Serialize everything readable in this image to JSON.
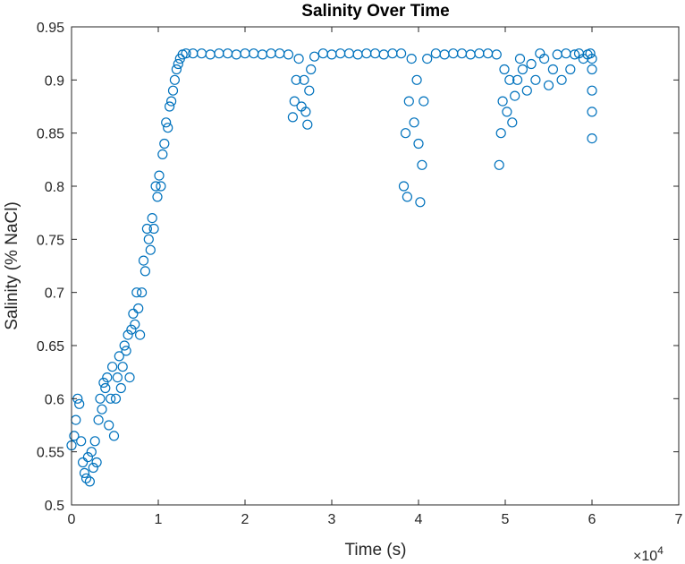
{
  "chart_data": {
    "type": "scatter",
    "title": "Salinity Over Time",
    "xlabel": "Time (s)",
    "ylabel": "Salinity (% NaCl)",
    "xlim": [
      0,
      70000
    ],
    "ylim": [
      0.5,
      0.95
    ],
    "x_ticks": [
      0,
      10000,
      20000,
      30000,
      40000,
      50000,
      60000,
      70000
    ],
    "x_tick_labels": [
      "0",
      "1",
      "2",
      "3",
      "4",
      "5",
      "6",
      "7"
    ],
    "x_exponent_label": "×10",
    "x_exponent_power": "4",
    "y_ticks": [
      0.5,
      0.55,
      0.6,
      0.65,
      0.7,
      0.75,
      0.8,
      0.85,
      0.9,
      0.95
    ],
    "y_tick_labels": [
      "0.5",
      "0.55",
      "0.6",
      "0.65",
      "0.7",
      "0.75",
      "0.8",
      "0.85",
      "0.9",
      "0.95"
    ],
    "grid": false,
    "marker": "circle-open",
    "marker_color": "#0072BD",
    "series": [
      {
        "x": [
          0,
          300,
          500,
          700,
          900,
          1100,
          1300,
          1500,
          1700,
          1900,
          2100,
          2300,
          2500,
          2700,
          2900,
          3100,
          3300,
          3500,
          3700,
          3900,
          4100,
          4300,
          4500,
          4700,
          4900,
          5100,
          5300,
          5500,
          5700,
          5900,
          6100,
          6300,
          6500,
          6700,
          6900,
          7100,
          7300,
          7500,
          7700,
          7900,
          8100,
          8300,
          8500,
          8700,
          8900,
          9100,
          9300,
          9500,
          9700,
          9900,
          10100,
          10300,
          10500,
          10700,
          10900,
          11100,
          11300,
          11500,
          11700,
          11900,
          12100,
          12300,
          12500,
          12800,
          13200,
          14000,
          15000,
          16000,
          17000,
          18000,
          19000,
          20000,
          21000,
          22000,
          23000,
          24000,
          25000,
          25500,
          25700,
          25900,
          26200,
          26500,
          26800,
          27000,
          27200,
          27400,
          27600,
          28000,
          29000,
          30000,
          31000,
          32000,
          33000,
          34000,
          35000,
          36000,
          37000,
          38000,
          38300,
          38500,
          38700,
          38900,
          39200,
          39500,
          39800,
          40000,
          40200,
          40400,
          40600,
          41000,
          42000,
          43000,
          44000,
          45000,
          46000,
          47000,
          48000,
          49000,
          49300,
          49500,
          49700,
          49900,
          50200,
          50500,
          50800,
          51100,
          51400,
          51700,
          52000,
          52500,
          53000,
          53500,
          54000,
          54500,
          55000,
          55500,
          56000,
          56500,
          57000,
          57500,
          58000,
          58500,
          59000,
          59500,
          59800,
          60000,
          60000,
          60000,
          60000,
          60000
        ],
        "y": [
          0.556,
          0.565,
          0.58,
          0.6,
          0.595,
          0.56,
          0.54,
          0.53,
          0.525,
          0.545,
          0.522,
          0.55,
          0.535,
          0.56,
          0.54,
          0.58,
          0.6,
          0.59,
          0.615,
          0.61,
          0.62,
          0.575,
          0.6,
          0.63,
          0.565,
          0.6,
          0.62,
          0.64,
          0.61,
          0.63,
          0.65,
          0.645,
          0.66,
          0.62,
          0.665,
          0.68,
          0.67,
          0.7,
          0.685,
          0.66,
          0.7,
          0.73,
          0.72,
          0.76,
          0.75,
          0.74,
          0.77,
          0.76,
          0.8,
          0.79,
          0.81,
          0.8,
          0.83,
          0.84,
          0.86,
          0.855,
          0.875,
          0.88,
          0.89,
          0.9,
          0.91,
          0.915,
          0.92,
          0.924,
          0.925,
          0.925,
          0.925,
          0.924,
          0.925,
          0.925,
          0.924,
          0.925,
          0.925,
          0.924,
          0.925,
          0.925,
          0.924,
          0.865,
          0.88,
          0.9,
          0.92,
          0.875,
          0.9,
          0.87,
          0.858,
          0.89,
          0.91,
          0.922,
          0.925,
          0.924,
          0.925,
          0.925,
          0.924,
          0.925,
          0.925,
          0.924,
          0.925,
          0.925,
          0.8,
          0.85,
          0.79,
          0.88,
          0.92,
          0.86,
          0.9,
          0.84,
          0.785,
          0.82,
          0.88,
          0.92,
          0.925,
          0.924,
          0.925,
          0.925,
          0.924,
          0.925,
          0.925,
          0.924,
          0.82,
          0.85,
          0.88,
          0.91,
          0.87,
          0.9,
          0.86,
          0.885,
          0.9,
          0.92,
          0.91,
          0.89,
          0.915,
          0.9,
          0.925,
          0.92,
          0.895,
          0.91,
          0.924,
          0.9,
          0.925,
          0.91,
          0.924,
          0.925,
          0.92,
          0.924,
          0.925,
          0.845,
          0.87,
          0.89,
          0.91,
          0.92
        ]
      }
    ]
  }
}
